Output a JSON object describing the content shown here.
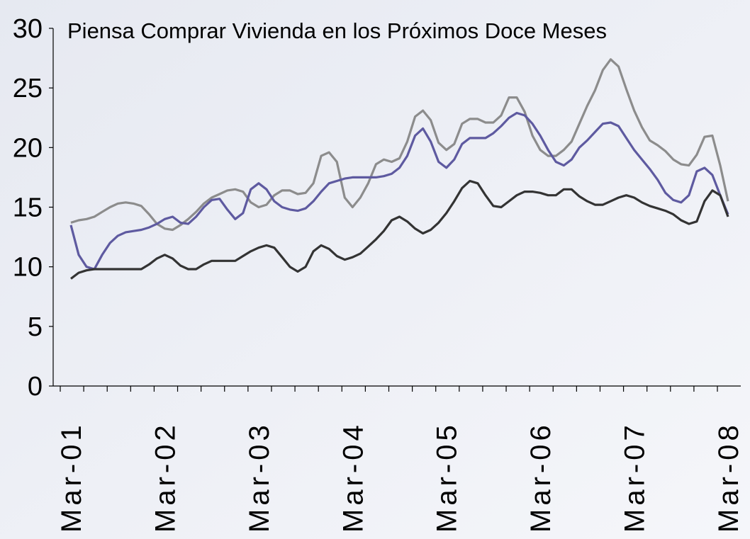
{
  "chart_data": {
    "type": "line",
    "title": "Piensa Comprar Vivienda en los Próximos Doce Meses",
    "categories": [
      "Mar-01",
      null,
      null,
      null,
      null,
      null,
      null,
      null,
      null,
      null,
      null,
      null,
      "Mar-02",
      null,
      null,
      null,
      null,
      null,
      null,
      null,
      null,
      null,
      null,
      null,
      "Mar-03",
      null,
      null,
      null,
      null,
      null,
      null,
      null,
      null,
      null,
      null,
      null,
      "Mar-04",
      null,
      null,
      null,
      null,
      null,
      null,
      null,
      null,
      null,
      null,
      null,
      "Mar-05",
      null,
      null,
      null,
      null,
      null,
      null,
      null,
      null,
      null,
      null,
      null,
      "Mar-06",
      null,
      null,
      null,
      null,
      null,
      null,
      null,
      null,
      null,
      null,
      null,
      "Mar-07",
      null,
      null,
      null,
      null,
      null,
      null,
      null,
      null,
      null,
      null,
      null,
      "Mar-08"
    ],
    "series": [
      {
        "color": "#8c8c8c",
        "values": [
          13.7,
          13.9,
          14,
          14.2,
          14.6,
          15,
          15.3,
          15.4,
          15.3,
          15.1,
          14.4,
          13.6,
          13.2,
          13.1,
          13.5,
          14,
          14.6,
          15.3,
          15.8,
          16.1,
          16.4,
          16.5,
          16.3,
          15.4,
          15,
          15.2,
          16,
          16.4,
          16.4,
          16.1,
          16.2,
          17,
          19.3,
          19.6,
          18.8,
          15.8,
          15,
          15.8,
          17,
          18.6,
          19,
          18.8,
          19.1,
          20.5,
          22.6,
          23.1,
          22.3,
          20.4,
          19.8,
          20.3,
          22,
          22.4,
          22.4,
          22.1,
          22.1,
          22.7,
          24.2,
          24.2,
          23,
          21,
          19.8,
          19.3,
          19.3,
          19.8,
          20.5,
          22,
          23.5,
          24.8,
          26.5,
          27.4,
          26.8,
          24.9,
          23.1,
          21.7,
          20.6,
          20.2,
          19.7,
          19,
          18.6,
          18.5,
          19.4,
          20.9,
          21,
          18.5,
          15.5
        ]
      },
      {
        "color": "#5e5aa0",
        "values": [
          13.5,
          11,
          10,
          9.8,
          11,
          12,
          12.6,
          12.9,
          13,
          13.1,
          13.3,
          13.6,
          14,
          14.2,
          13.7,
          13.6,
          14.2,
          15,
          15.6,
          15.7,
          14.8,
          14,
          14.5,
          16.5,
          17,
          16.5,
          15.5,
          15,
          14.8,
          14.7,
          14.9,
          15.5,
          16.3,
          17,
          17.2,
          17.4,
          17.5,
          17.5,
          17.5,
          17.5,
          17.6,
          17.8,
          18.3,
          19.3,
          21,
          21.6,
          20.5,
          18.8,
          18.3,
          19,
          20.3,
          20.8,
          20.8,
          20.8,
          21.2,
          21.8,
          22.5,
          22.9,
          22.7,
          22,
          21,
          19.8,
          18.8,
          18.5,
          19,
          20,
          20.6,
          21.3,
          22,
          22.1,
          21.8,
          20.8,
          19.8,
          19,
          18.2,
          17.3,
          16.2,
          15.6,
          15.4,
          16,
          18,
          18.3,
          17.7,
          16,
          14.4
        ]
      },
      {
        "color": "#333333",
        "values": [
          9,
          9.5,
          9.7,
          9.8,
          9.8,
          9.8,
          9.8,
          9.8,
          9.8,
          9.8,
          10.2,
          10.7,
          11,
          10.7,
          10.1,
          9.8,
          9.8,
          10.2,
          10.5,
          10.5,
          10.5,
          10.5,
          10.9,
          11.3,
          11.6,
          11.8,
          11.6,
          10.8,
          10,
          9.6,
          10,
          11.3,
          11.8,
          11.5,
          10.9,
          10.6,
          10.8,
          11.1,
          11.7,
          12.3,
          13,
          13.9,
          14.2,
          13.8,
          13.2,
          12.8,
          13.1,
          13.7,
          14.5,
          15.5,
          16.6,
          17.2,
          17,
          16,
          15.1,
          15,
          15.5,
          16,
          16.3,
          16.3,
          16.2,
          16,
          16,
          16.5,
          16.5,
          15.9,
          15.5,
          15.2,
          15.2,
          15.5,
          15.8,
          16,
          15.8,
          15.4,
          15.1,
          14.9,
          14.7,
          14.4,
          13.9,
          13.6,
          13.8,
          15.5,
          16.4,
          16,
          14.2
        ]
      }
    ],
    "ylim": [
      0,
      30
    ],
    "yticks": [
      0,
      5,
      10,
      15,
      20,
      25,
      30
    ]
  }
}
